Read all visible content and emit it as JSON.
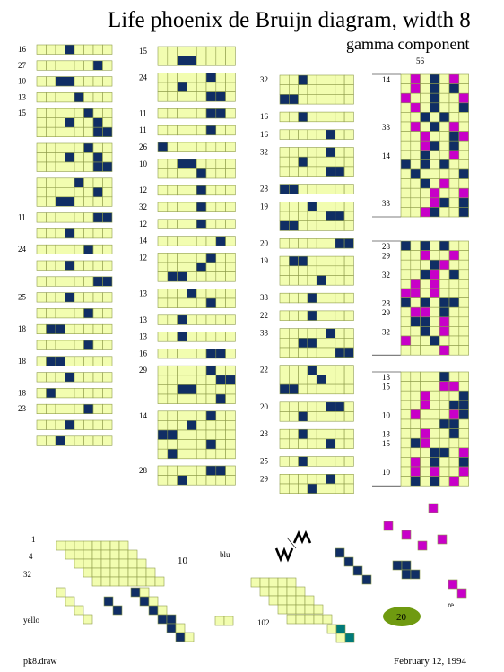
{
  "title": "Life phoenix de Bruijn diagram, width 8",
  "subtitle": "gamma component",
  "colors": {
    "cell": "#f2fdb0",
    "grid": "#8e9c4a",
    "navy": "#102e64",
    "magenta": "#c800c8",
    "teal": "#007a7a",
    "oval": "#6f9a10"
  },
  "col1": {
    "labels": [
      "16",
      "27",
      "10",
      "13",
      "15",
      "11",
      "24",
      "25",
      "18",
      "18",
      "18",
      "23"
    ],
    "blocks": [
      {
        "label": 0,
        "rows": [
          "00010000"
        ]
      },
      {
        "label": 1,
        "rows": [
          "00000010"
        ]
      },
      {
        "label": 2,
        "rows": [
          "00110000"
        ]
      },
      {
        "label": 3,
        "rows": [
          "00001000"
        ]
      },
      {
        "label": 4,
        "rows": [
          "00000100",
          "00010010",
          "00000011"
        ]
      },
      {
        "label": null,
        "rows": [
          "00000100",
          "00010010",
          "00000011"
        ]
      },
      {
        "label": null,
        "rows": [
          "00001000",
          "00000010",
          "00110000"
        ]
      },
      {
        "label": 5,
        "rows": [
          "00000011"
        ]
      },
      {
        "label": null,
        "rows": [
          "00010000"
        ]
      },
      {
        "label": 6,
        "rows": [
          "00000100"
        ]
      },
      {
        "label": null,
        "rows": [
          "00010000"
        ]
      },
      {
        "label": null,
        "rows": [
          "00000011"
        ]
      },
      {
        "label": 7,
        "rows": [
          "00010000"
        ]
      },
      {
        "label": null,
        "rows": [
          "00000100"
        ]
      },
      {
        "label": 8,
        "rows": [
          "01100000"
        ]
      },
      {
        "label": null,
        "rows": [
          "00000100"
        ]
      },
      {
        "label": 9,
        "rows": [
          "01100000"
        ]
      },
      {
        "label": null,
        "rows": [
          "00010000"
        ]
      },
      {
        "label": 10,
        "rows": [
          "01000000"
        ]
      },
      {
        "label": 11,
        "rows": [
          "00000100"
        ]
      },
      {
        "label": null,
        "rows": [
          "00010000"
        ]
      },
      {
        "label": null,
        "rows": [
          "00100000"
        ]
      }
    ]
  },
  "col2": {
    "labels": [
      "15",
      "24",
      "11",
      "11",
      "26",
      "10",
      "12",
      "32",
      "12",
      "14",
      "12",
      "13",
      "13",
      "13",
      "16",
      "29",
      "14",
      "28"
    ],
    "blocks": [
      {
        "label": 0,
        "rows": [
          "00000000",
          "00110000"
        ]
      },
      {
        "label": 1,
        "rows": [
          "00000100",
          "00100000",
          "00000110"
        ]
      },
      {
        "label": 2,
        "rows": [
          "00000110"
        ]
      },
      {
        "label": 3,
        "rows": [
          "00000100"
        ]
      },
      {
        "label": 4,
        "rows": [
          "10000000"
        ]
      },
      {
        "label": 5,
        "rows": [
          "00110000",
          "00001000"
        ]
      },
      {
        "label": 6,
        "rows": [
          "00001000"
        ]
      },
      {
        "label": 7,
        "rows": [
          "00001000"
        ]
      },
      {
        "label": 8,
        "rows": [
          "00001000"
        ]
      },
      {
        "label": 9,
        "rows": [
          "00000010"
        ]
      },
      {
        "label": 10,
        "rows": [
          "00000100",
          "00001000",
          "01100000"
        ]
      },
      {
        "label": 11,
        "rows": [
          "00010000",
          "00000100"
        ]
      },
      {
        "label": 12,
        "rows": [
          "00100000"
        ]
      },
      {
        "label": 13,
        "rows": [
          "00100000"
        ]
      },
      {
        "label": 14,
        "rows": [
          "00000110"
        ]
      },
      {
        "label": 15,
        "rows": [
          "00000100",
          "00000011",
          "00110000",
          "00000010"
        ]
      },
      {
        "label": 16,
        "rows": [
          "00000100",
          "00010000",
          "11000000",
          "00000100",
          "01000000"
        ]
      },
      {
        "label": 17,
        "rows": [
          "00000110",
          "00100000"
        ]
      }
    ]
  },
  "col3": {
    "labels": [
      "32",
      "16",
      "16",
      "32",
      "28",
      "19",
      "20",
      "19",
      "33",
      "22",
      "33",
      "22",
      "20",
      "23",
      "25",
      "29"
    ],
    "blocks": [
      {
        "label": 0,
        "rows": [
          "00100000",
          "00000000",
          "11000000"
        ]
      },
      {
        "label": 1,
        "rows": [
          "00100000"
        ]
      },
      {
        "label": 2,
        "rows": [
          "00000100"
        ]
      },
      {
        "label": 3,
        "rows": [
          "00000100",
          "00100000",
          "00000110"
        ]
      },
      {
        "label": 4,
        "rows": [
          "11000000"
        ]
      },
      {
        "label": 5,
        "rows": [
          "00010000",
          "00000110",
          "11000000"
        ]
      },
      {
        "label": 6,
        "rows": [
          "00000011"
        ]
      },
      {
        "label": 7,
        "rows": [
          "01100000",
          "00000000",
          "00001000"
        ]
      },
      {
        "label": 8,
        "rows": [
          "00010000"
        ]
      },
      {
        "label": 9,
        "rows": [
          "00010000"
        ]
      },
      {
        "label": 10,
        "rows": [
          "00000100",
          "00110000",
          "00000011"
        ]
      },
      {
        "label": 11,
        "rows": [
          "00010000",
          "00001000",
          "11000000"
        ]
      },
      {
        "label": 12,
        "rows": [
          "00000110",
          "00100000"
        ]
      },
      {
        "label": 13,
        "rows": [
          "00100000",
          "00000100"
        ]
      },
      {
        "label": 14,
        "rows": [
          "00100000"
        ]
      },
      {
        "label": 15,
        "rows": [
          "00000100",
          "00010000"
        ]
      }
    ]
  },
  "col4": {
    "top_label": "56",
    "labels": [
      "14",
      "33",
      "14",
      "33",
      "28",
      "29",
      "32",
      "28",
      "29",
      "32",
      "13",
      "15",
      "10",
      "13",
      "15",
      "10"
    ],
    "panels": [
      {
        "labels": [
          {
            "l": 0,
            "row": 0
          },
          {
            "l": 1,
            "row": 5
          },
          {
            "l": 2,
            "row": 8
          },
          {
            "l": 3,
            "row": 13
          }
        ],
        "rows": [
          "0m0n0m0",
          "0m0n0n0",
          "m00n00m",
          "0m0n00n",
          "00n0n00",
          "0m0n0m0",
          "00m00nm",
          "00mn0n0",
          "00n00m0",
          "n0n0n00",
          "0n0000n",
          "00n0m00",
          "000m00m",
          "000mn0n",
          "00mn00n"
        ]
      },
      {
        "labels": [
          {
            "l": 4,
            "row": 0
          },
          {
            "l": 5,
            "row": 1
          },
          {
            "l": 6,
            "row": 3
          },
          {
            "l": 7,
            "row": 6
          },
          {
            "l": 8,
            "row": 7
          },
          {
            "l": 9,
            "row": 9
          }
        ],
        "rows": [
          "n0n0n00",
          "00m00m0",
          "000nm00",
          "00nm0n0",
          "0m0m000",
          "mm0m000",
          "n0n0nn0",
          "0mm0n00",
          "0nn0m00",
          "00n0m00",
          "m00n000",
          "0000m00"
        ]
      },
      {
        "labels": [
          {
            "l": 10,
            "row": 0
          },
          {
            "l": 11,
            "row": 1
          },
          {
            "l": 12,
            "row": 4
          },
          {
            "l": 13,
            "row": 6
          },
          {
            "l": 14,
            "row": 7
          },
          {
            "l": 15,
            "row": 10
          }
        ],
        "rows": [
          "0000n00",
          "0000mm0",
          "00m000n",
          "00m00nn",
          "0m000mn",
          "0000nn0",
          "00m00n0",
          "0nm0000",
          "000nn0m",
          "0m0n00n",
          "0m0m00m",
          "0n0n0m0"
        ]
      }
    ]
  },
  "bottom": {
    "labels": [
      "1",
      "4",
      "32",
      "10",
      "blu",
      "yello",
      "102",
      "re"
    ],
    "oval_text": "20",
    "footer_left": "pk8.draw",
    "footer_right": "February 12, 1994"
  }
}
